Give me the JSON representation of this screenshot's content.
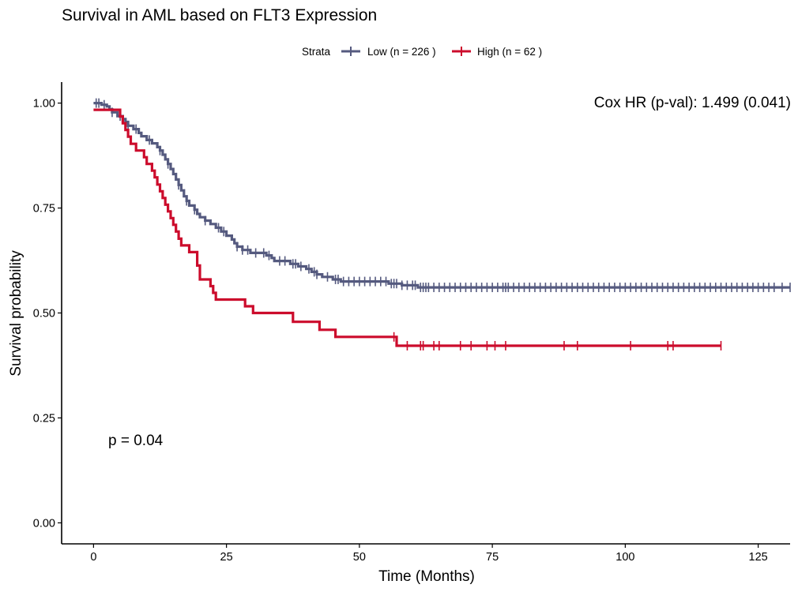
{
  "chart_data": {
    "type": "line",
    "subtype": "kaplan-meier survival curve (step)",
    "title": "Survival in AML based on FLT3 Expression",
    "xlabel": "Time (Months)",
    "ylabel": "Survival probability",
    "xlim": [
      -6,
      131
    ],
    "ylim": [
      -0.05,
      1.05
    ],
    "x_ticks": [
      "0",
      "25",
      "50",
      "75",
      "100",
      "125"
    ],
    "y_ticks": [
      "0.00",
      "0.25",
      "0.50",
      "0.75",
      "1.00"
    ],
    "grid": false,
    "legend": {
      "title": "Strata",
      "placement": "top",
      "entries": [
        "Low (n = 226 )",
        "High (n = 62 )"
      ]
    },
    "annotations": {
      "cox_hr": "Cox HR (p-val): 1.499 (0.041)",
      "p_value": "p = 0.04"
    },
    "series": [
      {
        "name": "Low (n = 226 )",
        "color": "#555a7f",
        "steps": [
          [
            0,
            1.0
          ],
          [
            1.5,
            0.996
          ],
          [
            2.5,
            0.992
          ],
          [
            3,
            0.985
          ],
          [
            3.5,
            0.978
          ],
          [
            4.5,
            0.969
          ],
          [
            5.5,
            0.962
          ],
          [
            6,
            0.955
          ],
          [
            6.5,
            0.946
          ],
          [
            7.5,
            0.938
          ],
          [
            8.5,
            0.929
          ],
          [
            9,
            0.921
          ],
          [
            10,
            0.912
          ],
          [
            11,
            0.904
          ],
          [
            12,
            0.895
          ],
          [
            12.5,
            0.887
          ],
          [
            13,
            0.877
          ],
          [
            13.5,
            0.866
          ],
          [
            14,
            0.855
          ],
          [
            14.5,
            0.843
          ],
          [
            15,
            0.831
          ],
          [
            15.5,
            0.818
          ],
          [
            16,
            0.805
          ],
          [
            16.5,
            0.792
          ],
          [
            17,
            0.778
          ],
          [
            17.5,
            0.767
          ],
          [
            18,
            0.756
          ],
          [
            19,
            0.746
          ],
          [
            19.5,
            0.736
          ],
          [
            20,
            0.728
          ],
          [
            21,
            0.72
          ],
          [
            22,
            0.712
          ],
          [
            23,
            0.703
          ],
          [
            24,
            0.694
          ],
          [
            25,
            0.684
          ],
          [
            26,
            0.675
          ],
          [
            26.5,
            0.666
          ],
          [
            27,
            0.658
          ],
          [
            28,
            0.65
          ],
          [
            29.5,
            0.643
          ],
          [
            32.5,
            0.637
          ],
          [
            33.5,
            0.631
          ],
          [
            34,
            0.624
          ],
          [
            37,
            0.617
          ],
          [
            38.5,
            0.611
          ],
          [
            40,
            0.605
          ],
          [
            41,
            0.598
          ],
          [
            42,
            0.592
          ],
          [
            43,
            0.586
          ],
          [
            45,
            0.58
          ],
          [
            46.5,
            0.575
          ],
          [
            55.5,
            0.57
          ],
          [
            58,
            0.566
          ],
          [
            61,
            0.561
          ],
          [
            131,
            0.561
          ]
        ],
        "censor_times": [
          0.5,
          1,
          2,
          3.5,
          5,
          6.5,
          8,
          10.5,
          12.5,
          14,
          16,
          17.5,
          19,
          21,
          23.5,
          24.5,
          27,
          28,
          29,
          30.5,
          32,
          33,
          35,
          36,
          37.5,
          38,
          39,
          40.5,
          41.5,
          42,
          44,
          45.5,
          46,
          47,
          48,
          49,
          50,
          51,
          52,
          53,
          54,
          55,
          56,
          56.5,
          57,
          58,
          59,
          60,
          60.5,
          61.5,
          62,
          62.5,
          63,
          64,
          65,
          66,
          67,
          68,
          69,
          70,
          71,
          72,
          73,
          74,
          75,
          76,
          77,
          77.5,
          78,
          79,
          80,
          81,
          82,
          83,
          84,
          85,
          86,
          87,
          88,
          89,
          90,
          91,
          92,
          93,
          94,
          95,
          96,
          97,
          98,
          99,
          100,
          101,
          102,
          103,
          104,
          105,
          106,
          107,
          108,
          109,
          110,
          111,
          112,
          113,
          114,
          115,
          116,
          117,
          118,
          119,
          120,
          121,
          122,
          123,
          124,
          125,
          126,
          127,
          128,
          129.5,
          131
        ]
      },
      {
        "name": "High (n = 62 )",
        "color": "#cc0c2c",
        "steps": [
          [
            0,
            0.984
          ],
          [
            5,
            0.968
          ],
          [
            5.5,
            0.952
          ],
          [
            6,
            0.936
          ],
          [
            6.5,
            0.92
          ],
          [
            7,
            0.903
          ],
          [
            8,
            0.887
          ],
          [
            9.5,
            0.871
          ],
          [
            10,
            0.855
          ],
          [
            11,
            0.839
          ],
          [
            11.5,
            0.823
          ],
          [
            12,
            0.806
          ],
          [
            12.5,
            0.79
          ],
          [
            13,
            0.774
          ],
          [
            13.5,
            0.758
          ],
          [
            14,
            0.742
          ],
          [
            14.5,
            0.726
          ],
          [
            15,
            0.71
          ],
          [
            15.5,
            0.694
          ],
          [
            16,
            0.677
          ],
          [
            16.5,
            0.661
          ],
          [
            18,
            0.645
          ],
          [
            19.5,
            0.613
          ],
          [
            20,
            0.58
          ],
          [
            22,
            0.564
          ],
          [
            22.5,
            0.548
          ],
          [
            23,
            0.532
          ],
          [
            28.5,
            0.516
          ],
          [
            30,
            0.5
          ],
          [
            37.5,
            0.479
          ],
          [
            42.5,
            0.46
          ],
          [
            45.5,
            0.443
          ],
          [
            57,
            0.422
          ],
          [
            118,
            0.422
          ]
        ],
        "censor_times": [
          56.5,
          59,
          61.5,
          62,
          64,
          65,
          69,
          71,
          74,
          75.5,
          77.5,
          88.5,
          91,
          101,
          108,
          109,
          118
        ]
      }
    ]
  }
}
